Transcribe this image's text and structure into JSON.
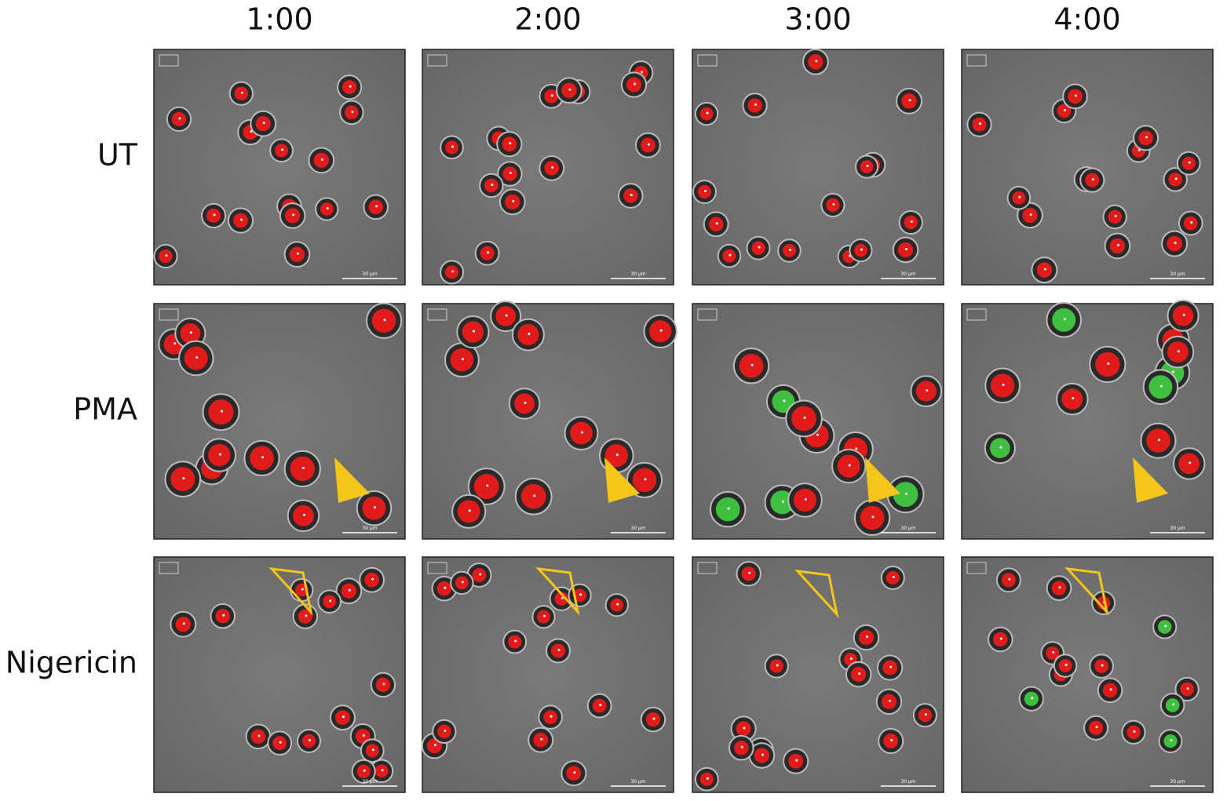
{
  "columns": [
    "1:00",
    "2:00",
    "3:00",
    "4:00"
  ],
  "rows": [
    "UT",
    "PMA",
    "Nigericin"
  ],
  "scale_bar_label": "30 µm"
}
